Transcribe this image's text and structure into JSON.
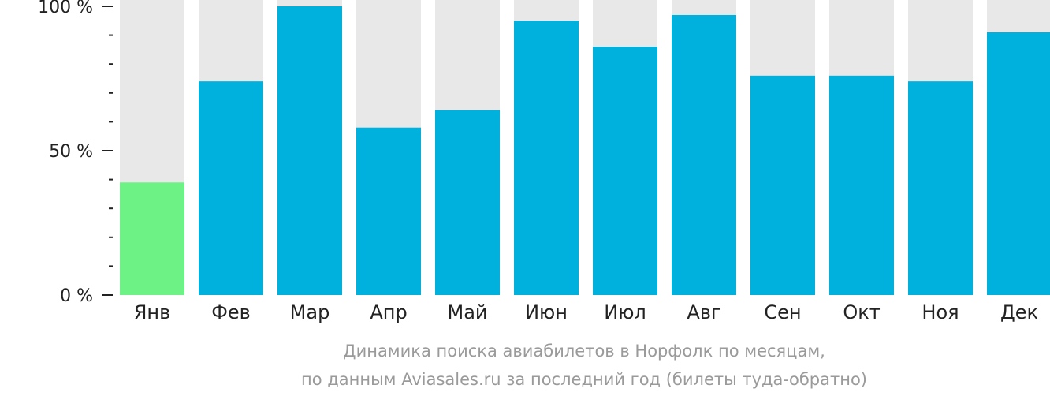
{
  "chart_data": {
    "type": "bar",
    "categories": [
      "Янв",
      "Фев",
      "Мар",
      "Апр",
      "Май",
      "Июн",
      "Июл",
      "Авг",
      "Сен",
      "Окт",
      "Ноя",
      "Дек"
    ],
    "values": [
      39,
      74,
      100,
      58,
      64,
      95,
      86,
      97,
      76,
      76,
      74,
      91
    ],
    "highlight_index": 0,
    "ylim": [
      0,
      100
    ],
    "y_ticks": [
      {
        "value": 100,
        "label": "100 %"
      },
      {
        "value": 50,
        "label": "50 %"
      },
      {
        "value": 0,
        "label": "0 %"
      }
    ],
    "y_minor_step": 10,
    "grid": false,
    "caption_line1": "Динамика поиска авиабилетов в Норфолк по месяцам,",
    "caption_line2": "по данным Aviasales.ru за последний год (билеты туда-обратно)",
    "colors": {
      "bar": "#00b0dd",
      "highlight": "#6cf285",
      "background_bar": "#e8e8e8",
      "axis": "#222222",
      "caption": "#9a9a9a"
    }
  }
}
